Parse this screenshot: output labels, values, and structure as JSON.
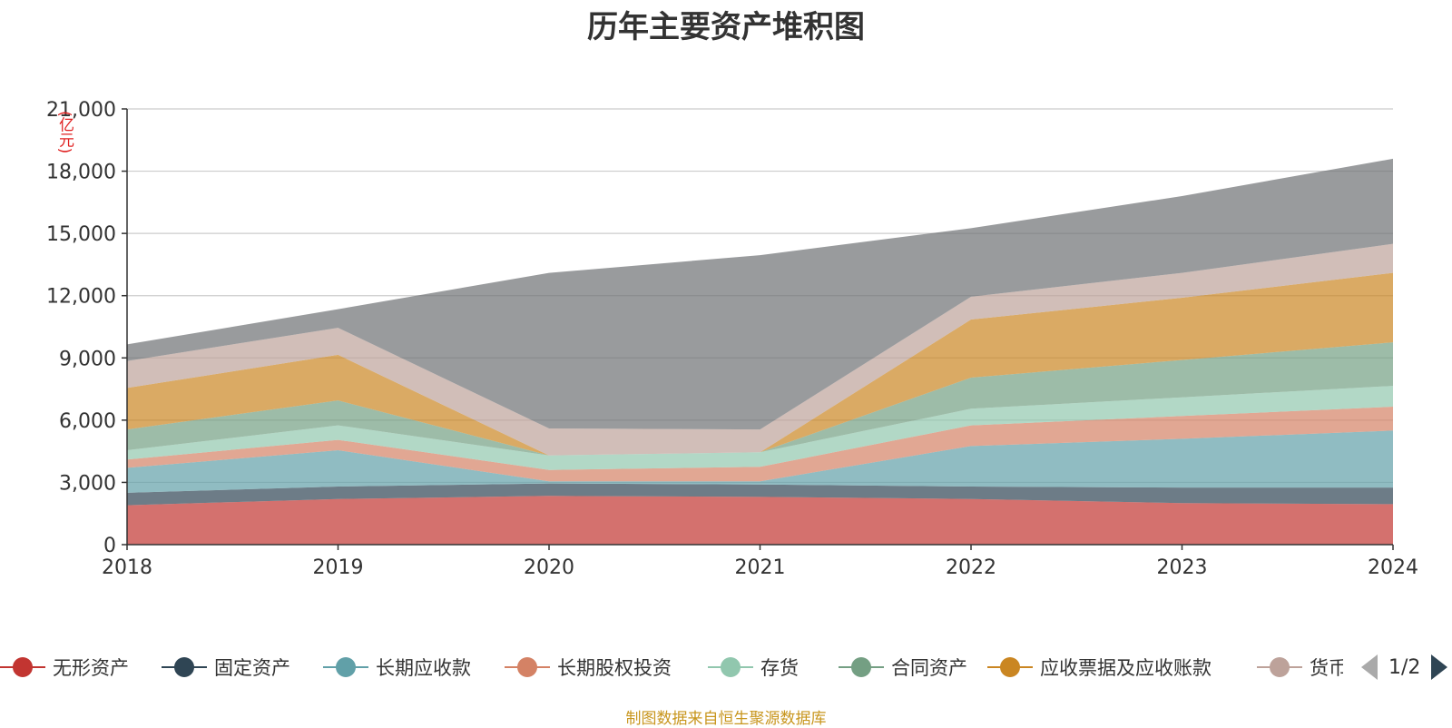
{
  "title": "历年主要资产堆积图",
  "unit_label": "(亿元)",
  "source": "制图数据来自恒生聚源数据库",
  "pager": {
    "text": "1/2"
  },
  "colors": {
    "axis": "#333333",
    "grid": "#cccccc",
    "tick_text": "#333333"
  },
  "chart_data": {
    "type": "area",
    "stacked": true,
    "x": [
      "2018",
      "2019",
      "2020",
      "2021",
      "2022",
      "2023",
      "2024"
    ],
    "ylim": [
      0,
      21000
    ],
    "yticks": [
      0,
      3000,
      6000,
      9000,
      12000,
      15000,
      18000,
      21000
    ],
    "ytick_labels": [
      "0",
      "3,000",
      "6,000",
      "9,000",
      "12,000",
      "15,000",
      "18,000",
      "21,000"
    ],
    "grid": true,
    "legend_position": "bottom",
    "series": [
      {
        "name": "无形资产",
        "color": "#c23531",
        "values": [
          1900,
          2200,
          2350,
          2300,
          2200,
          2000,
          1950
        ]
      },
      {
        "name": "固定资产",
        "color": "#2f4554",
        "values": [
          600,
          600,
          600,
          600,
          600,
          750,
          800
        ]
      },
      {
        "name": "长期应收款",
        "color": "#61a0a8",
        "values": [
          1200,
          1750,
          100,
          150,
          1950,
          2350,
          2750
        ]
      },
      {
        "name": "长期股权投资",
        "color": "#d48265",
        "values": [
          400,
          500,
          550,
          700,
          1000,
          1100,
          1150
        ]
      },
      {
        "name": "存货",
        "color": "#91c7ae",
        "values": [
          450,
          700,
          700,
          700,
          800,
          900,
          1000
        ]
      },
      {
        "name": "合同资产",
        "color": "#749f83",
        "values": [
          1000,
          1200,
          0,
          0,
          1500,
          1800,
          2100
        ]
      },
      {
        "name": "应收票据及应收账款",
        "color": "#ca8622",
        "values": [
          2000,
          2200,
          0,
          0,
          2800,
          3000,
          3350
        ]
      },
      {
        "name": "货币资金",
        "color": "#bda29a",
        "values": [
          1300,
          1300,
          1300,
          1100,
          1100,
          1200,
          1400
        ]
      },
      {
        "name": "",
        "color": "#6e7074",
        "values": [
          800,
          900,
          7500,
          8400,
          3300,
          3700,
          4100
        ]
      }
    ],
    "legend_visible": [
      "无形资产",
      "固定资产",
      "长期应收款",
      "长期股权投资",
      "存货",
      "合同资产",
      "应收票据及应收账款",
      "货币资金"
    ]
  }
}
